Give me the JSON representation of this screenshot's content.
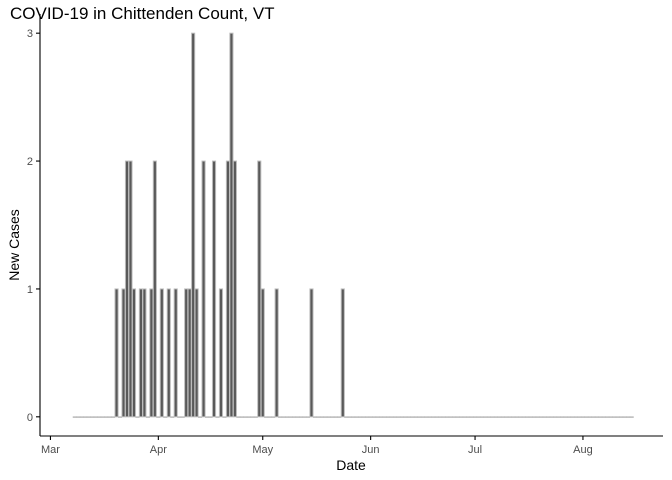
{
  "chart_data": {
    "type": "bar",
    "title": "COVID-19 in Chittenden Count, VT",
    "xlabel": "Date",
    "ylabel": "New Cases",
    "xlim": [
      "2020-02-27",
      "2020-08-24"
    ],
    "ylim": [
      -0.15,
      3.15
    ],
    "x_ticks": [
      {
        "date": "2020-03-01",
        "label": "Mar"
      },
      {
        "date": "2020-04-01",
        "label": "Apr"
      },
      {
        "date": "2020-05-01",
        "label": "May"
      },
      {
        "date": "2020-06-01",
        "label": "Jun"
      },
      {
        "date": "2020-07-01",
        "label": "Jul"
      },
      {
        "date": "2020-08-01",
        "label": "Aug"
      }
    ],
    "y_ticks": [
      0,
      1,
      2,
      3
    ],
    "grid": false,
    "bar_color": "#595959",
    "bar_outline": "#bdbdbd",
    "date_range": [
      "2020-03-08",
      "2020-08-15"
    ],
    "points": [
      {
        "date": "2020-03-20",
        "value": 1
      },
      {
        "date": "2020-03-22",
        "value": 1
      },
      {
        "date": "2020-03-23",
        "value": 2
      },
      {
        "date": "2020-03-24",
        "value": 2
      },
      {
        "date": "2020-03-25",
        "value": 1
      },
      {
        "date": "2020-03-27",
        "value": 1
      },
      {
        "date": "2020-03-28",
        "value": 1
      },
      {
        "date": "2020-03-30",
        "value": 1
      },
      {
        "date": "2020-03-31",
        "value": 2
      },
      {
        "date": "2020-04-02",
        "value": 1
      },
      {
        "date": "2020-04-04",
        "value": 1
      },
      {
        "date": "2020-04-06",
        "value": 1
      },
      {
        "date": "2020-04-09",
        "value": 1
      },
      {
        "date": "2020-04-10",
        "value": 1
      },
      {
        "date": "2020-04-11",
        "value": 3
      },
      {
        "date": "2020-04-12",
        "value": 1
      },
      {
        "date": "2020-04-14",
        "value": 2
      },
      {
        "date": "2020-04-17",
        "value": 2
      },
      {
        "date": "2020-04-19",
        "value": 1
      },
      {
        "date": "2020-04-21",
        "value": 2
      },
      {
        "date": "2020-04-22",
        "value": 3
      },
      {
        "date": "2020-04-23",
        "value": 2
      },
      {
        "date": "2020-04-30",
        "value": 2
      },
      {
        "date": "2020-05-01",
        "value": 1
      },
      {
        "date": "2020-05-05",
        "value": 1
      },
      {
        "date": "2020-05-15",
        "value": 1
      },
      {
        "date": "2020-05-24",
        "value": 1
      }
    ]
  }
}
